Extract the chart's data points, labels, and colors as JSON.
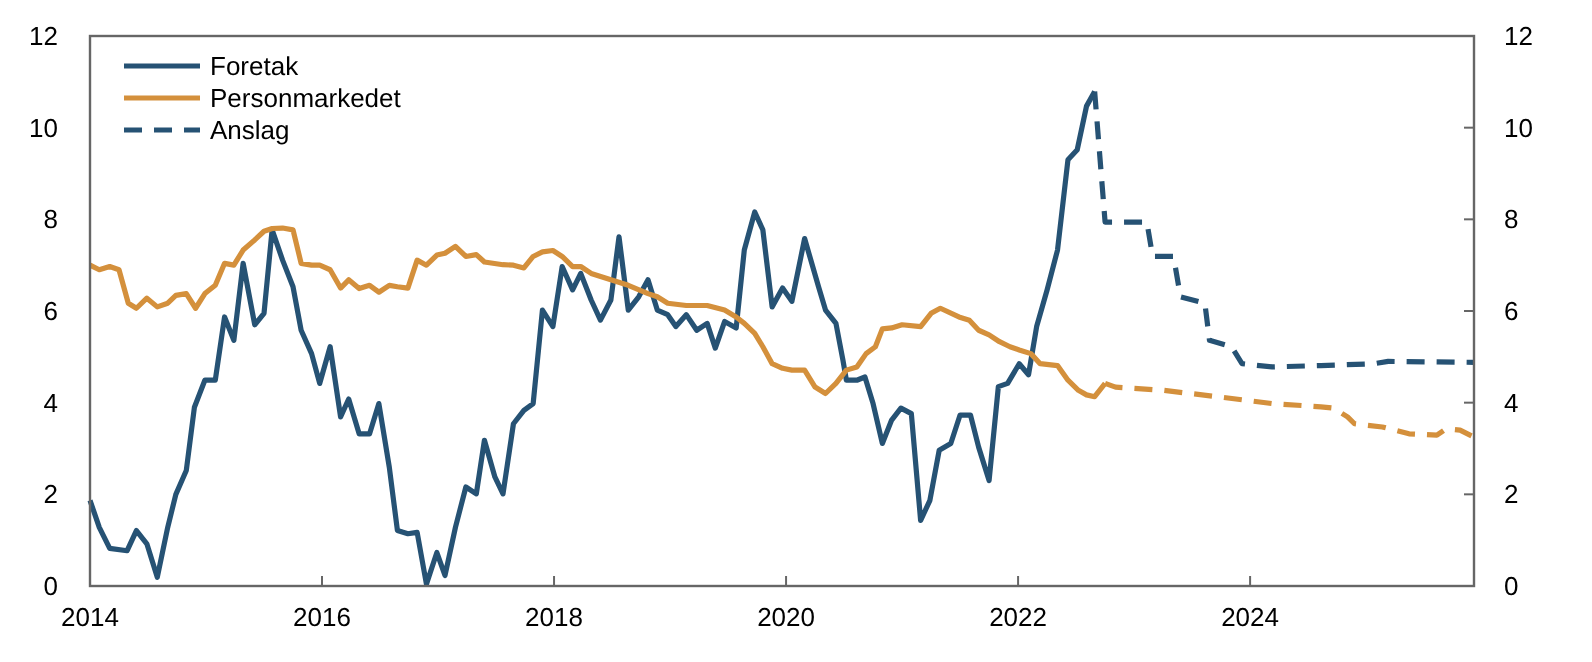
{
  "chart_data": {
    "type": "line",
    "xlim": [
      2014,
      2025.93
    ],
    "xticks": [
      2014,
      2016,
      2018,
      2020,
      2022,
      2024
    ],
    "ylim": [
      0,
      12
    ],
    "yticks": [
      0,
      2,
      4,
      6,
      8,
      10,
      12
    ],
    "y2lim": [
      0,
      12
    ],
    "y2ticks": [
      0,
      2,
      4,
      6,
      8,
      10,
      12
    ],
    "grid": false,
    "legend": "top left",
    "marker": "none",
    "series": [
      {
        "name": "Foretak",
        "color": "#265274",
        "line_style": "solid",
        "x": [
          2014.0,
          2014.08,
          2014.17,
          2014.32,
          2014.4,
          2014.49,
          2014.58,
          2014.67,
          2014.74,
          2014.83,
          2014.9,
          2014.99,
          2015.08,
          2015.16,
          2015.24,
          2015.32,
          2015.42,
          2015.5,
          2015.57,
          2015.66,
          2015.75,
          2015.82,
          2015.91,
          2015.98,
          2016.07,
          2016.16,
          2016.23,
          2016.32,
          2016.41,
          2016.49,
          2016.58,
          2016.65,
          2016.74,
          2016.82,
          2016.9,
          2016.99,
          2017.06,
          2017.15,
          2017.24,
          2017.33,
          2017.4,
          2017.49,
          2017.56,
          2017.65,
          2017.74,
          2017.82,
          2017.9,
          2017.99,
          2018.07,
          2018.16,
          2018.23,
          2018.32,
          2018.4,
          2018.49,
          2018.56,
          2018.64,
          2018.73,
          2018.81,
          2018.89,
          2018.98,
          2019.05,
          2019.14,
          2019.23,
          2019.32,
          2019.39,
          2019.47,
          2019.57,
          2019.64,
          2019.73,
          2019.8,
          2019.88,
          2019.97,
          2020.05,
          2020.16,
          2020.28,
          2020.34,
          2020.43,
          2020.49,
          2020.52,
          2020.61,
          2020.68,
          2020.75,
          2020.83,
          2020.91,
          2020.99,
          2021.08,
          2021.16,
          2021.24,
          2021.32,
          2021.42,
          2021.5,
          2021.59,
          2021.66,
          2021.75,
          2021.83,
          2021.91,
          2022.01,
          2022.09,
          2022.16,
          2022.25,
          2022.34,
          2022.43,
          2022.51,
          2022.59,
          2022.66
        ],
        "values": [
          1.87,
          1.28,
          0.82,
          0.77,
          1.21,
          0.92,
          0.19,
          1.28,
          2.0,
          2.52,
          3.9,
          4.49,
          4.49,
          5.87,
          5.36,
          7.04,
          5.7,
          5.95,
          7.77,
          7.11,
          6.53,
          5.58,
          5.07,
          4.42,
          5.22,
          3.69,
          4.08,
          3.32,
          3.32,
          3.98,
          2.59,
          1.21,
          1.14,
          1.17,
          0.04,
          0.73,
          0.23,
          1.28,
          2.16,
          2.01,
          3.18,
          2.38,
          2.01,
          3.54,
          3.83,
          3.98,
          6.02,
          5.66,
          6.97,
          6.46,
          6.82,
          6.24,
          5.8,
          6.24,
          7.62,
          6.02,
          6.31,
          6.68,
          6.02,
          5.92,
          5.66,
          5.92,
          5.58,
          5.73,
          5.19,
          5.77,
          5.63,
          7.33,
          8.16,
          7.77,
          6.09,
          6.5,
          6.21,
          7.58,
          6.53,
          6.02,
          5.73,
          4.93,
          4.49,
          4.49,
          4.56,
          3.98,
          3.11,
          3.62,
          3.88,
          3.76,
          1.43,
          1.87,
          2.96,
          3.11,
          3.73,
          3.73,
          3.03,
          2.3,
          4.35,
          4.42,
          4.85,
          4.61,
          5.66,
          6.46,
          7.33,
          9.3,
          9.52,
          10.47,
          10.79
        ]
      },
      {
        "name": "Personmarkedet",
        "color": "#d4903c",
        "line_style": "solid",
        "x": [
          2014.0,
          2014.08,
          2014.17,
          2014.25,
          2014.33,
          2014.4,
          2014.49,
          2014.58,
          2014.67,
          2014.74,
          2014.83,
          2014.91,
          2014.99,
          2015.08,
          2015.16,
          2015.24,
          2015.32,
          2015.42,
          2015.5,
          2015.57,
          2015.66,
          2015.75,
          2015.82,
          2015.91,
          2015.98,
          2016.07,
          2016.16,
          2016.23,
          2016.32,
          2016.41,
          2016.49,
          2016.58,
          2016.65,
          2016.74,
          2016.82,
          2016.9,
          2016.99,
          2017.06,
          2017.15,
          2017.24,
          2017.33,
          2017.4,
          2017.56,
          2017.65,
          2017.74,
          2017.82,
          2017.9,
          2017.99,
          2018.07,
          2018.16,
          2018.23,
          2018.32,
          2018.49,
          2018.64,
          2018.81,
          2018.89,
          2018.98,
          2019.14,
          2019.32,
          2019.47,
          2019.57,
          2019.64,
          2019.73,
          2019.8,
          2019.88,
          2019.97,
          2020.05,
          2020.16,
          2020.25,
          2020.34,
          2020.43,
          2020.52,
          2020.61,
          2020.69,
          2020.77,
          2020.83,
          2020.91,
          2021.0,
          2021.16,
          2021.25,
          2021.33,
          2021.49,
          2021.58,
          2021.66,
          2021.75,
          2021.84,
          2021.93,
          2022.01,
          2022.11,
          2022.19,
          2022.34,
          2022.43,
          2022.52,
          2022.59,
          2022.66,
          2022.75
        ],
        "values": [
          7.0,
          6.9,
          6.97,
          6.9,
          6.17,
          6.06,
          6.28,
          6.09,
          6.17,
          6.34,
          6.38,
          6.06,
          6.38,
          6.56,
          7.04,
          7.0,
          7.33,
          7.55,
          7.74,
          7.8,
          7.81,
          7.77,
          7.04,
          7.0,
          7.0,
          6.9,
          6.5,
          6.68,
          6.49,
          6.56,
          6.41,
          6.56,
          6.53,
          6.5,
          7.11,
          7.0,
          7.22,
          7.26,
          7.41,
          7.19,
          7.23,
          7.07,
          7.01,
          7.0,
          6.94,
          7.19,
          7.29,
          7.32,
          7.19,
          6.97,
          6.97,
          6.82,
          6.68,
          6.56,
          6.38,
          6.31,
          6.17,
          6.12,
          6.12,
          6.02,
          5.87,
          5.73,
          5.51,
          5.22,
          4.85,
          4.75,
          4.71,
          4.71,
          4.34,
          4.2,
          4.42,
          4.71,
          4.78,
          5.07,
          5.22,
          5.61,
          5.63,
          5.7,
          5.66,
          5.95,
          6.06,
          5.87,
          5.8,
          5.58,
          5.48,
          5.33,
          5.22,
          5.15,
          5.07,
          4.85,
          4.81,
          4.49,
          4.27,
          4.17,
          4.13,
          4.42
        ]
      },
      {
        "name": "Anslag",
        "color": "#265274",
        "line_style": "dashed",
        "x": [
          2022.66,
          2022.75,
          2023.11,
          2023.16,
          2023.34,
          2023.4,
          2023.61,
          2023.65,
          2023.84,
          2023.93,
          2024.19,
          2024.61,
          2025.07,
          2025.19,
          2025.93
        ],
        "values": [
          10.79,
          7.94,
          7.94,
          7.19,
          7.19,
          6.31,
          6.17,
          5.36,
          5.22,
          4.85,
          4.78,
          4.81,
          4.85,
          4.9,
          4.88
        ]
      },
      {
        "color": "#d4903c",
        "line_style": "dashed",
        "x": [
          2022.75,
          2022.84,
          2023.25,
          2023.72,
          2024.19,
          2024.61,
          2024.72,
          2024.84,
          2024.9,
          2025.14,
          2025.37,
          2025.61,
          2025.69,
          2025.81,
          2025.93
        ],
        "values": [
          4.42,
          4.34,
          4.27,
          4.13,
          3.98,
          3.91,
          3.88,
          3.69,
          3.54,
          3.47,
          3.32,
          3.29,
          3.43,
          3.4,
          3.25
        ]
      }
    ]
  }
}
